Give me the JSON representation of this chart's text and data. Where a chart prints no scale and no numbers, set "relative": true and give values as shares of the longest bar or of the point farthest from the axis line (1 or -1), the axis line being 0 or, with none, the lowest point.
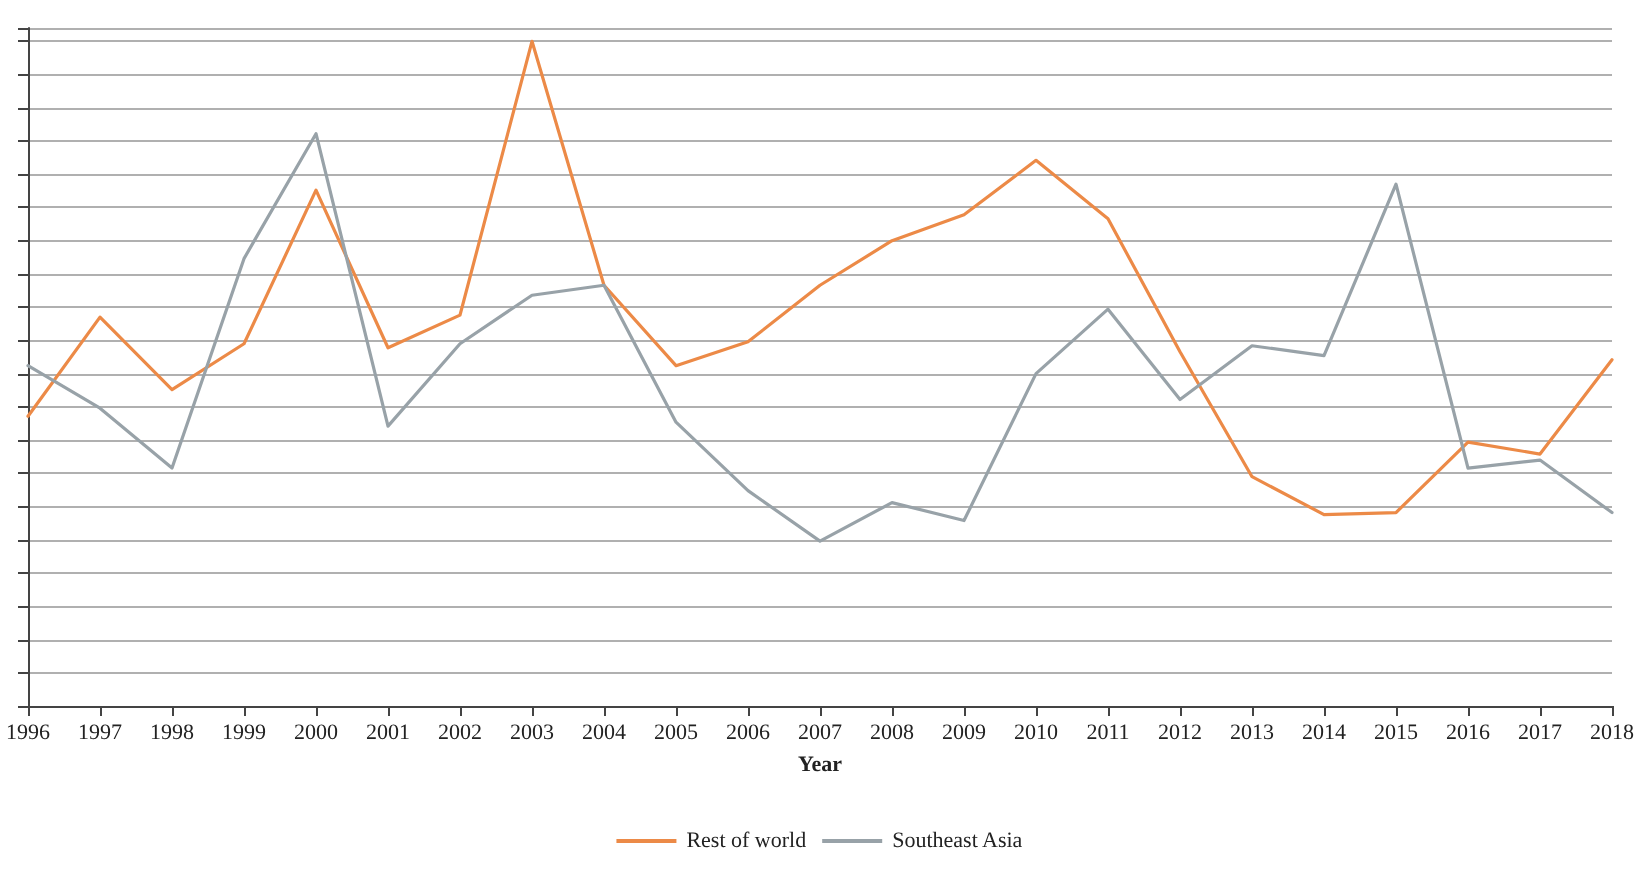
{
  "chart_data": {
    "type": "line",
    "relative": true,
    "xlabel": "Year",
    "categories": [
      "1996",
      "1997",
      "1998",
      "1999",
      "2000",
      "2001",
      "2002",
      "2003",
      "2004",
      "2005",
      "2006",
      "2007",
      "2008",
      "2009",
      "2010",
      "2011",
      "2012",
      "2013",
      "2014",
      "2015",
      "2016",
      "2017",
      "2018"
    ],
    "series": [
      {
        "name": "Rest of world",
        "color": "#ec8a47",
        "values": [
          0.436,
          0.585,
          0.476,
          0.545,
          0.776,
          0.539,
          0.588,
          1,
          0.633,
          0.512,
          0.548,
          0.633,
          0.7,
          0.739,
          0.821,
          0.733,
          0.533,
          0.345,
          0.288,
          0.291,
          0.397,
          0.379,
          0.521
        ]
      },
      {
        "name": "Southeast Asia",
        "color": "#98a2a8",
        "values": [
          0.512,
          0.448,
          0.358,
          0.673,
          0.861,
          0.421,
          0.545,
          0.618,
          0.633,
          0.427,
          0.324,
          0.248,
          0.306,
          0.279,
          0.5,
          0.597,
          0.461,
          0.542,
          0.527,
          0.785,
          0.358,
          0.37,
          0.291
        ]
      }
    ],
    "grid": "y",
    "legend": "bottom",
    "marker": "none",
    "line_style": "solid"
  }
}
